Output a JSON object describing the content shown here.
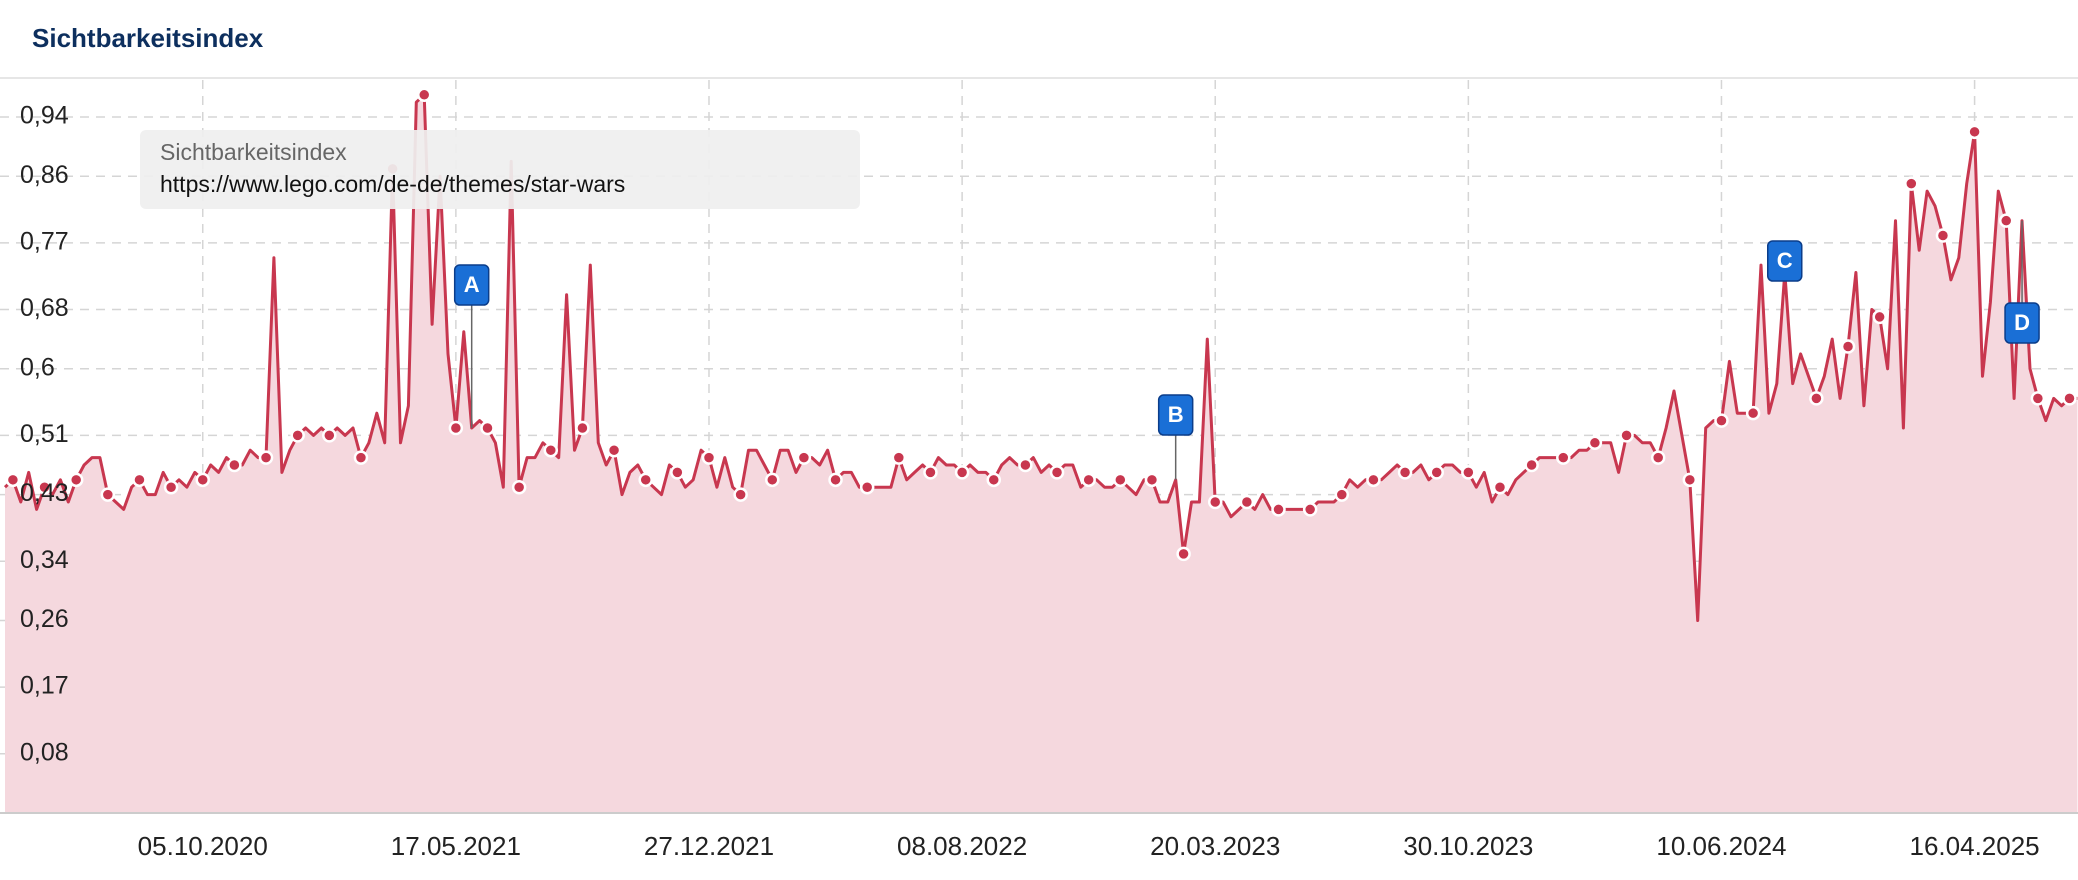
{
  "chart_data": {
    "type": "line",
    "title": "Sichtbarkeitsindex",
    "legend_title": "Sichtbarkeitsindex",
    "categories": [
      null,
      null,
      null,
      null,
      null,
      null,
      null,
      null,
      null,
      null,
      null,
      null,
      null,
      null,
      null,
      null,
      null,
      null,
      null,
      null,
      null,
      null,
      null,
      null,
      null,
      "05.10.2020",
      null,
      null,
      null,
      null,
      null,
      null,
      null,
      null,
      null,
      null,
      null,
      null,
      null,
      null,
      null,
      null,
      null,
      null,
      null,
      null,
      null,
      null,
      null,
      null,
      null,
      null,
      null,
      null,
      null,
      null,
      null,
      "17.05.2021",
      null,
      null,
      null,
      null,
      null,
      null,
      null,
      null,
      null,
      null,
      null,
      null,
      null,
      null,
      null,
      null,
      null,
      null,
      null,
      null,
      null,
      null,
      null,
      null,
      null,
      null,
      null,
      null,
      null,
      null,
      null,
      "27.12.2021",
      null,
      null,
      null,
      null,
      null,
      null,
      null,
      null,
      null,
      null,
      null,
      null,
      null,
      null,
      null,
      null,
      null,
      null,
      null,
      null,
      null,
      null,
      null,
      null,
      null,
      null,
      null,
      null,
      null,
      null,
      null,
      "08.08.2022",
      null,
      null,
      null,
      null,
      null,
      null,
      null,
      null,
      null,
      null,
      null,
      null,
      null,
      null,
      null,
      null,
      null,
      null,
      null,
      null,
      null,
      null,
      null,
      null,
      null,
      null,
      null,
      null,
      null,
      null,
      null,
      "20.03.2023",
      null,
      null,
      null,
      null,
      null,
      null,
      null,
      null,
      null,
      null,
      null,
      null,
      null,
      null,
      null,
      null,
      null,
      null,
      null,
      null,
      null,
      null,
      null,
      null,
      null,
      null,
      null,
      null,
      null,
      null,
      null,
      "30.10.2023",
      null,
      null,
      null,
      null,
      null,
      null,
      null,
      null,
      null,
      null,
      null,
      null,
      null,
      null,
      null,
      null,
      null,
      null,
      null,
      null,
      null,
      null,
      null,
      null,
      null,
      null,
      null,
      null,
      null,
      null,
      null,
      "10.06.2024",
      null,
      null,
      null,
      null,
      null,
      null,
      null,
      null,
      null,
      null,
      null,
      null,
      null,
      null,
      null,
      null,
      null,
      null,
      null,
      null,
      null,
      null,
      null,
      null,
      null,
      null,
      null,
      null,
      null,
      null,
      null,
      "16.04.2025",
      null,
      null,
      null,
      null,
      null,
      null,
      null,
      null,
      null,
      null,
      null,
      null,
      null
    ],
    "series": [
      {
        "name": "https://www.lego.com/de-de/themes/star-wars",
        "color": "#c8374f",
        "fill_color": "#f5d8de",
        "values": [
          0.44,
          0.45,
          0.42,
          0.46,
          0.41,
          0.44,
          0.43,
          0.45,
          0.42,
          0.45,
          0.47,
          0.48,
          0.48,
          0.43,
          0.42,
          0.41,
          0.44,
          0.45,
          0.43,
          0.43,
          0.46,
          0.44,
          0.45,
          0.44,
          0.46,
          0.45,
          0.47,
          0.46,
          0.48,
          0.47,
          0.47,
          0.49,
          0.48,
          0.48,
          0.75,
          0.46,
          0.49,
          0.51,
          0.52,
          0.51,
          0.52,
          0.51,
          0.52,
          0.51,
          0.52,
          0.48,
          0.5,
          0.54,
          0.5,
          0.87,
          0.5,
          0.55,
          0.96,
          0.97,
          0.66,
          0.86,
          0.62,
          0.52,
          0.65,
          0.52,
          0.53,
          0.52,
          0.5,
          0.44,
          0.88,
          0.44,
          0.48,
          0.48,
          0.5,
          0.49,
          0.48,
          0.7,
          0.49,
          0.52,
          0.74,
          0.5,
          0.47,
          0.49,
          0.43,
          0.46,
          0.47,
          0.45,
          0.44,
          0.43,
          0.47,
          0.46,
          0.44,
          0.45,
          0.49,
          0.48,
          0.44,
          0.48,
          0.44,
          0.43,
          0.49,
          0.49,
          0.47,
          0.45,
          0.49,
          0.49,
          0.46,
          0.48,
          0.48,
          0.47,
          0.49,
          0.45,
          0.46,
          0.46,
          0.44,
          0.44,
          0.44,
          0.44,
          0.44,
          0.48,
          0.45,
          0.46,
          0.47,
          0.46,
          0.48,
          0.47,
          0.47,
          0.46,
          0.47,
          0.46,
          0.46,
          0.45,
          0.47,
          0.48,
          0.47,
          0.47,
          0.48,
          0.46,
          0.47,
          0.46,
          0.47,
          0.47,
          0.44,
          0.45,
          0.45,
          0.44,
          0.44,
          0.45,
          0.44,
          0.43,
          0.45,
          0.45,
          0.42,
          0.42,
          0.45,
          0.35,
          0.42,
          0.42,
          0.64,
          0.42,
          0.42,
          0.4,
          0.41,
          0.42,
          0.41,
          0.43,
          0.41,
          0.41,
          0.41,
          0.41,
          0.41,
          0.41,
          0.42,
          0.42,
          0.42,
          0.43,
          0.45,
          0.44,
          0.45,
          0.45,
          0.45,
          0.46,
          0.47,
          0.46,
          0.46,
          0.47,
          0.45,
          0.46,
          0.47,
          0.47,
          0.46,
          0.46,
          0.44,
          0.46,
          0.42,
          0.44,
          0.43,
          0.45,
          0.46,
          0.47,
          0.48,
          0.48,
          0.48,
          0.48,
          0.48,
          0.49,
          0.49,
          0.5,
          0.5,
          0.5,
          0.46,
          0.51,
          0.51,
          0.5,
          0.5,
          0.48,
          0.52,
          0.57,
          0.51,
          0.45,
          0.26,
          0.52,
          0.53,
          0.53,
          0.61,
          0.54,
          0.54,
          0.54,
          0.74,
          0.54,
          0.58,
          0.73,
          0.58,
          0.62,
          0.59,
          0.56,
          0.59,
          0.64,
          0.56,
          0.63,
          0.73,
          0.55,
          0.68,
          0.67,
          0.6,
          0.8,
          0.52,
          0.85,
          0.76,
          0.84,
          0.82,
          0.78,
          0.72,
          0.75,
          0.85,
          0.92,
          0.59,
          0.69,
          0.84,
          0.8,
          0.56,
          0.8,
          0.6,
          0.56,
          0.53,
          0.56,
          0.55,
          0.56,
          0.56
        ]
      }
    ],
    "ylim": [
      0,
      0.99
    ],
    "yticks": [
      {
        "value": 0.08,
        "label": "0,08"
      },
      {
        "value": 0.17,
        "label": "0,17"
      },
      {
        "value": 0.26,
        "label": "0,26"
      },
      {
        "value": 0.34,
        "label": "0,34"
      },
      {
        "value": 0.43,
        "label": "0,43"
      },
      {
        "value": 0.51,
        "label": "0,51"
      },
      {
        "value": 0.6,
        "label": "0,6"
      },
      {
        "value": 0.68,
        "label": "0,68"
      },
      {
        "value": 0.77,
        "label": "0,77"
      },
      {
        "value": 0.86,
        "label": "0,86"
      },
      {
        "value": 0.94,
        "label": "0,94"
      }
    ],
    "grid": true,
    "annotations": [
      "A",
      "B",
      "C",
      "D"
    ]
  }
}
